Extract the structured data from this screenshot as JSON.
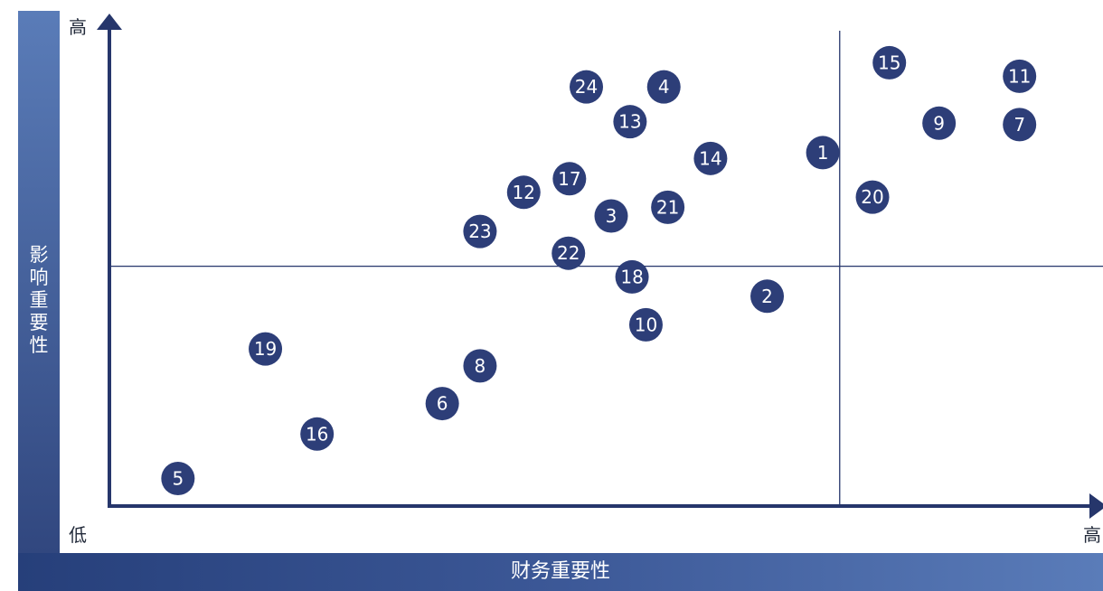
{
  "chart_data": {
    "type": "scatter",
    "xlabel": "财务重要性",
    "ylabel": "影响重要性",
    "x_low_label": "",
    "x_high_label": "高",
    "y_low_label": "低",
    "y_high_label": "高",
    "xlim": [
      0,
      100
    ],
    "ylim": [
      0,
      100
    ],
    "quadrant_divider": {
      "x": 73.5,
      "y": 49.6
    },
    "grid": false,
    "legend": "none",
    "colors": {
      "bubble": "#2d3e78",
      "axis": "#26366b",
      "band": "#3d5a9a"
    },
    "points": [
      {
        "label": "1",
        "x": 71.8,
        "y": 73.1
      },
      {
        "label": "2",
        "x": 66.2,
        "y": 43.4
      },
      {
        "label": "3",
        "x": 50.5,
        "y": 60.0
      },
      {
        "label": "4",
        "x": 55.8,
        "y": 86.7
      },
      {
        "label": "5",
        "x": 6.9,
        "y": 5.7
      },
      {
        "label": "6",
        "x": 33.5,
        "y": 21.2
      },
      {
        "label": "7",
        "x": 91.6,
        "y": 78.9
      },
      {
        "label": "8",
        "x": 37.3,
        "y": 29.0
      },
      {
        "label": "9",
        "x": 83.5,
        "y": 79.2
      },
      {
        "label": "10",
        "x": 54.0,
        "y": 37.5
      },
      {
        "label": "11",
        "x": 91.6,
        "y": 88.9
      },
      {
        "label": "12",
        "x": 41.7,
        "y": 64.9
      },
      {
        "label": "13",
        "x": 52.4,
        "y": 79.5
      },
      {
        "label": "14",
        "x": 60.5,
        "y": 71.9
      },
      {
        "label": "15",
        "x": 78.5,
        "y": 91.7
      },
      {
        "label": "16",
        "x": 20.9,
        "y": 14.9
      },
      {
        "label": "17",
        "x": 46.3,
        "y": 67.7
      },
      {
        "label": "18",
        "x": 52.6,
        "y": 47.4
      },
      {
        "label": "19",
        "x": 15.7,
        "y": 32.5
      },
      {
        "label": "20",
        "x": 76.8,
        "y": 63.9
      },
      {
        "label": "21",
        "x": 56.2,
        "y": 61.8
      },
      {
        "label": "22",
        "x": 46.2,
        "y": 52.3
      },
      {
        "label": "23",
        "x": 37.3,
        "y": 56.8
      },
      {
        "label": "24",
        "x": 48.0,
        "y": 86.7
      }
    ]
  }
}
